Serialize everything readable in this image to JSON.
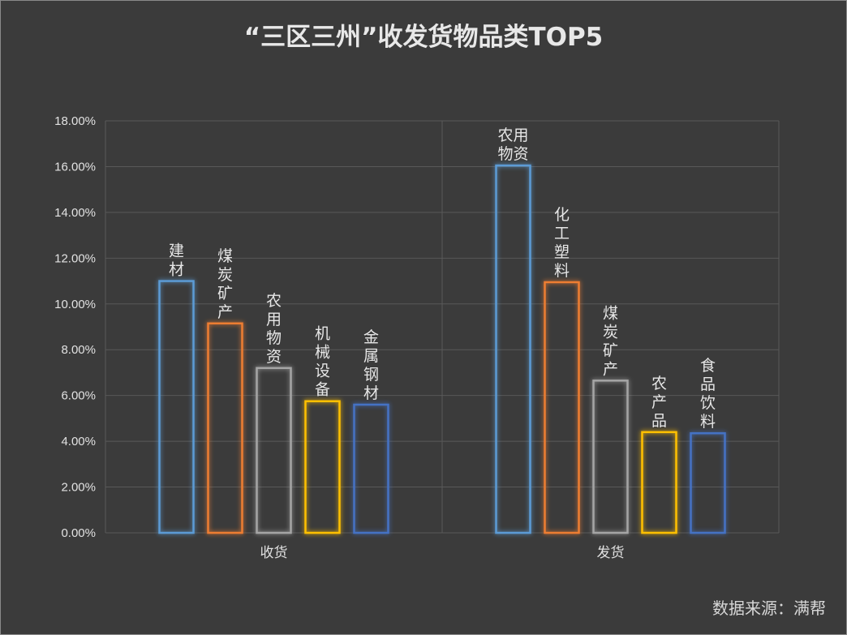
{
  "title": "“三区三州”收发货物品类TOP5",
  "source": "数据来源：满帮",
  "chart_data": {
    "type": "bar",
    "ylim": [
      0,
      18
    ],
    "y_ticks": [
      "0.00%",
      "2.00%",
      "4.00%",
      "6.00%",
      "8.00%",
      "10.00%",
      "12.00%",
      "14.00%",
      "16.00%",
      "18.00%"
    ],
    "grid": true,
    "bar_colors": [
      "#5b9bd5",
      "#ed7d31",
      "#a5a5a5",
      "#ffc000",
      "#4472c4"
    ],
    "groups": [
      {
        "name": "收货",
        "bars": [
          {
            "label": "建材",
            "value": 11.0
          },
          {
            "label": "煤炭矿产",
            "value": 9.15
          },
          {
            "label": "农用物资",
            "value": 7.2
          },
          {
            "label": "机械设备",
            "value": 5.75
          },
          {
            "label": "金属钢材",
            "value": 5.6
          }
        ]
      },
      {
        "name": "发货",
        "bars": [
          {
            "label": "农用物资",
            "value": 16.05
          },
          {
            "label": "化工塑料",
            "value": 10.95
          },
          {
            "label": "煤炭矿产",
            "value": 6.65
          },
          {
            "label": "农产品",
            "value": 4.4
          },
          {
            "label": "食品饮料",
            "value": 4.35
          }
        ]
      }
    ]
  }
}
